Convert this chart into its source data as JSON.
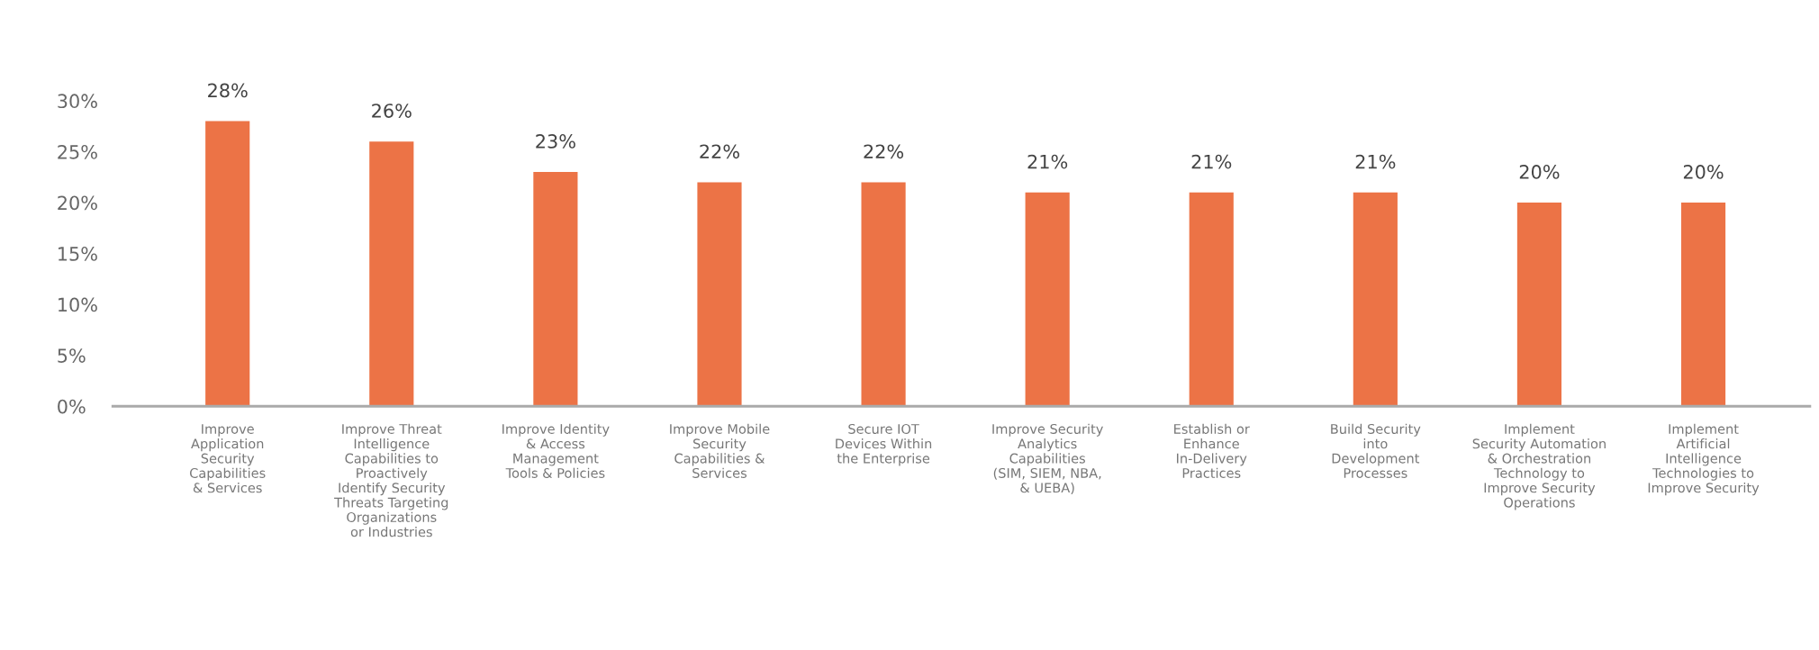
{
  "chart_data": {
    "type": "bar",
    "categories": [
      "Improve\nApplication\nSecurity\nCapabilities\n& Services",
      "Improve Threat\nIntelligence\nCapabilities to\nProactively\nIdentify Security\nThreats Targeting\nOrganizations\nor Industries",
      "Improve Identity\n& Access\nManagement\nTools & Policies",
      "Improve Mobile\nSecurity\nCapabilities &\nServices",
      "Secure IOT\nDevices Within\nthe Enterprise",
      "Improve Security\nAnalytics\nCapabilities\n(SIM, SIEM, NBA,\n& UEBA)",
      "Establish or\nEnhance\nIn-Delivery\nPractices",
      "Build Security\ninto\nDevelopment\nProcesses",
      "Implement\nSecurity Automation\n& Orchestration\nTechnology to\nImprove Security\nOperations",
      "Implement\nArtificial\nIntelligence\nTechnologies to\nImprove Security"
    ],
    "values": [
      28,
      26,
      23,
      22,
      22,
      21,
      21,
      21,
      20,
      20
    ],
    "color": "#ec7346",
    "value_labels": [
      "28%",
      "26%",
      "23%",
      "22%",
      "22%",
      "21%",
      "21%",
      "21%",
      "20%",
      "20%"
    ],
    "ylim": [
      0,
      30
    ],
    "yticks": [
      {
        "value": 0,
        "label": "0%"
      },
      {
        "value": 5,
        "label": "5%"
      },
      {
        "value": 10,
        "label": "10%"
      },
      {
        "value": 15,
        "label": "15%"
      },
      {
        "value": 20,
        "label": "20%"
      },
      {
        "value": 25,
        "label": "25%"
      },
      {
        "value": 30,
        "label": "30%"
      }
    ],
    "grid": false
  }
}
